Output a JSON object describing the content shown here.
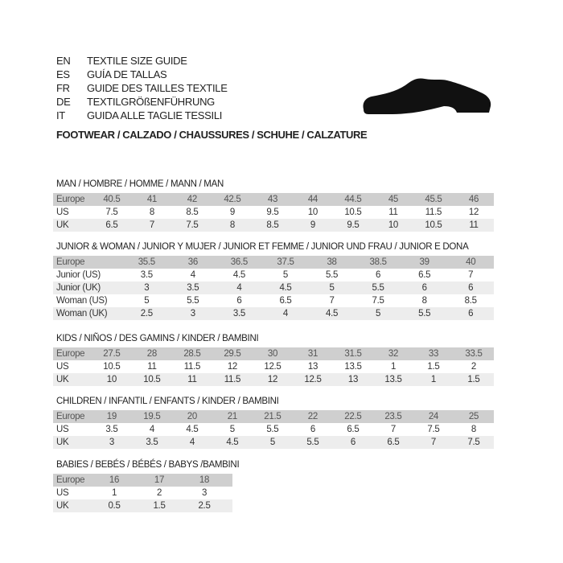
{
  "languages": [
    {
      "code": "EN",
      "text": "TEXTILE SIZE GUIDE"
    },
    {
      "code": "ES",
      "text": "GUÍA DE TALLAS"
    },
    {
      "code": "FR",
      "text": "GUIDE DES TAILLES TEXTILE"
    },
    {
      "code": "DE",
      "text": "TEXTILGRÖßENFÜHRUNG"
    },
    {
      "code": "IT",
      "text": "GUIDA ALLE TAGLIE TESSILI"
    }
  ],
  "footwear_title": "FOOTWEAR / CALZADO / CHAUSSURES / SCHUHE / CALZATURE",
  "shoe_icon": "shoe-icon",
  "sections": [
    {
      "title": "MAN / HOMBRE / HOMME / MANN / MAN",
      "rows": [
        {
          "label": "Europe",
          "values": [
            "40.5",
            "41",
            "42",
            "42.5",
            "43",
            "44",
            "44.5",
            "45",
            "45.5",
            "46"
          ]
        },
        {
          "label": "US",
          "values": [
            "7.5",
            "8",
            "8.5",
            "9",
            "9.5",
            "10",
            "10.5",
            "11",
            "11.5",
            "12"
          ]
        },
        {
          "label": "UK",
          "values": [
            "6.5",
            "7",
            "7.5",
            "8",
            "8.5",
            "9",
            "9.5",
            "10",
            "10.5",
            "11"
          ]
        }
      ]
    },
    {
      "title": "JUNIOR & WOMAN / JUNIOR Y MUJER / JUNIOR ET FEMME / JUNIOR UND FRAU / JUNIOR E DONA",
      "rows": [
        {
          "label": "Europe",
          "values": [
            "35.5",
            "36",
            "36.5",
            "37.5",
            "38",
            "38.5",
            "39",
            "40"
          ]
        },
        {
          "label": "Junior (US)",
          "values": [
            "3.5",
            "4",
            "4.5",
            "5",
            "5.5",
            "6",
            "6.5",
            "7"
          ]
        },
        {
          "label": "Junior (UK)",
          "values": [
            "3",
            "3.5",
            "4",
            "4.5",
            "5",
            "5.5",
            "6",
            "6"
          ]
        },
        {
          "label": "Woman (US)",
          "values": [
            "5",
            "5.5",
            "6",
            "6.5",
            "7",
            "7.5",
            "8",
            "8.5"
          ]
        },
        {
          "label": "Woman (UK)",
          "values": [
            "2.5",
            "3",
            "3.5",
            "4",
            "4.5",
            "5",
            "5.5",
            "6"
          ]
        }
      ]
    },
    {
      "title": "KIDS / NIÑOS / DES GAMINS / KINDER / BAMBINI",
      "rows": [
        {
          "label": "Europe",
          "values": [
            "27.5",
            "28",
            "28.5",
            "29.5",
            "30",
            "31",
            "31.5",
            "32",
            "33",
            "33.5"
          ]
        },
        {
          "label": "US",
          "values": [
            "10.5",
            "11",
            "11.5",
            "12",
            "12.5",
            "13",
            "13.5",
            "1",
            "1.5",
            "2"
          ]
        },
        {
          "label": "UK",
          "values": [
            "10",
            "10.5",
            "11",
            "11.5",
            "12",
            "12.5",
            "13",
            "13.5",
            "1",
            "1.5"
          ]
        }
      ]
    },
    {
      "title": "CHILDREN / INFANTIL / ENFANTS / KINDER / BAMBINI",
      "rows": [
        {
          "label": "Europe",
          "values": [
            "19",
            "19.5",
            "20",
            "21",
            "21.5",
            "22",
            "22.5",
            "23.5",
            "24",
            "25"
          ]
        },
        {
          "label": "US",
          "values": [
            "3.5",
            "4",
            "4.5",
            "5",
            "5.5",
            "6",
            "6.5",
            "7",
            "7.5",
            "8"
          ]
        },
        {
          "label": "UK",
          "values": [
            "3",
            "3.5",
            "4",
            "4.5",
            "5",
            "5.5",
            "6",
            "6.5",
            "7",
            "7.5"
          ]
        }
      ]
    },
    {
      "title": "BABIES  / BEBÉS / BÉBÉS / BABYS /BAMBINI",
      "rows": [
        {
          "label": "Europe",
          "values": [
            "16",
            "17",
            "18"
          ]
        },
        {
          "label": "US",
          "values": [
            "1",
            "2",
            "3"
          ]
        },
        {
          "label": "UK",
          "values": [
            "0.5",
            "1.5",
            "2.5"
          ]
        }
      ]
    }
  ]
}
